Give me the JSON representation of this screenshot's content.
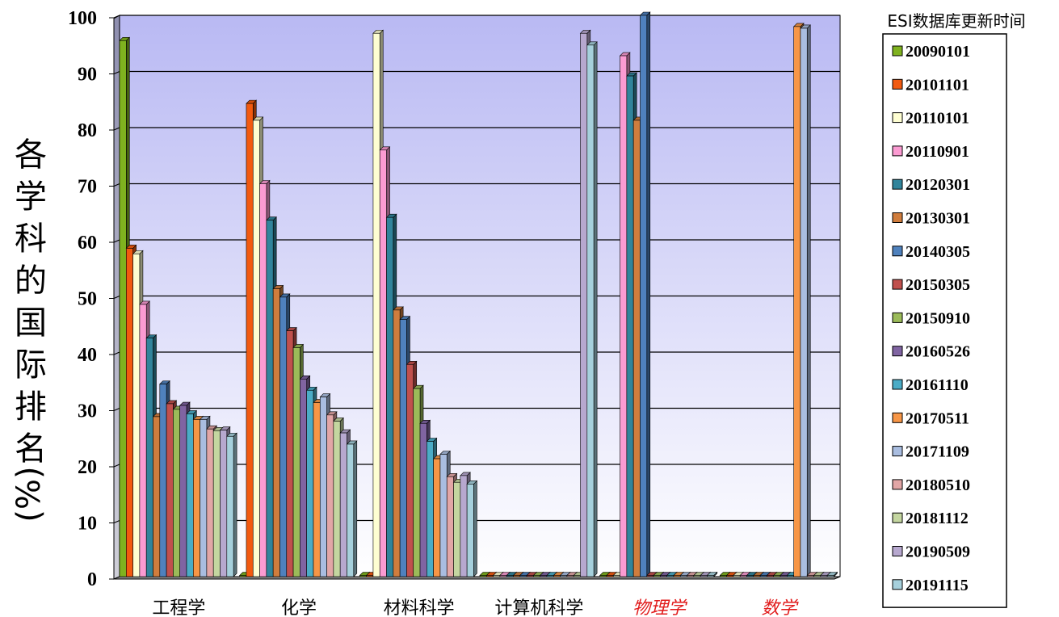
{
  "chart_data": {
    "type": "bar",
    "title": "",
    "xlabel": "",
    "ylabel": "各学科的国际排名(%)",
    "ylim": [
      0,
      100
    ],
    "yticks": [
      "0",
      "10",
      "20",
      "30",
      "40",
      "50",
      "60",
      "70",
      "80",
      "90",
      "100"
    ],
    "grid": true,
    "legend_title": "ESI数据库更新时间",
    "legend_position": "right",
    "categories": [
      "工程学",
      "化学",
      "材料科学",
      "计算机科学",
      "物理学",
      "数学"
    ],
    "highlighted_categories": [
      "物理学",
      "数学"
    ],
    "highlight_color": "#e11c1c",
    "series": [
      {
        "name": "20090101",
        "color": "#7fb21f",
        "values": [
          95.5,
          0,
          0,
          0,
          0,
          0
        ]
      },
      {
        "name": "20101101",
        "color": "#f25a10",
        "values": [
          58.5,
          84.3,
          0,
          0,
          0,
          0
        ]
      },
      {
        "name": "20110101",
        "color": "#fefed2",
        "values": [
          57.5,
          81.3,
          96.8,
          0,
          0,
          0
        ]
      },
      {
        "name": "20110901",
        "color": "#fb9bd2",
        "values": [
          48.5,
          70.0,
          76.0,
          0,
          92.8,
          0
        ]
      },
      {
        "name": "20120301",
        "color": "#31849b",
        "values": [
          42.5,
          63.5,
          64.0,
          0,
          89.2,
          0
        ]
      },
      {
        "name": "20130301",
        "color": "#d07d3d",
        "values": [
          28.5,
          51.3,
          47.5,
          0,
          81.3,
          0
        ]
      },
      {
        "name": "20140305",
        "color": "#4f81bd",
        "values": [
          34.3,
          49.8,
          45.8,
          0,
          100,
          0
        ]
      },
      {
        "name": "20150305",
        "color": "#c0504d",
        "values": [
          30.8,
          43.8,
          37.8,
          0,
          0,
          0
        ]
      },
      {
        "name": "20150910",
        "color": "#9bbb59",
        "values": [
          29.8,
          40.8,
          33.5,
          0,
          0,
          0
        ]
      },
      {
        "name": "20160526",
        "color": "#8064a2",
        "values": [
          30.5,
          35.2,
          27.3,
          0,
          0,
          0
        ]
      },
      {
        "name": "20161110",
        "color": "#4bacc6",
        "values": [
          29.0,
          33.2,
          24.1,
          0,
          0,
          0
        ]
      },
      {
        "name": "20170511",
        "color": "#f79646",
        "values": [
          28.0,
          31.0,
          21.0,
          0,
          0,
          98.0
        ]
      },
      {
        "name": "20171109",
        "color": "#a9bde0",
        "values": [
          28.0,
          32.0,
          21.8,
          0,
          0,
          97.7
        ]
      },
      {
        "name": "20180510",
        "color": "#e2a6a6",
        "values": [
          26.3,
          28.8,
          17.8,
          0,
          0,
          0
        ]
      },
      {
        "name": "20181112",
        "color": "#c4d6a0",
        "values": [
          26.0,
          27.7,
          16.8,
          0,
          0,
          0
        ]
      },
      {
        "name": "20190509",
        "color": "#b7a8cf",
        "values": [
          26.1,
          25.6,
          18.0,
          96.8,
          0,
          0
        ]
      },
      {
        "name": "20191115",
        "color": "#a6d0dc",
        "values": [
          25.0,
          23.6,
          16.5,
          94.7,
          0,
          0
        ]
      }
    ]
  }
}
